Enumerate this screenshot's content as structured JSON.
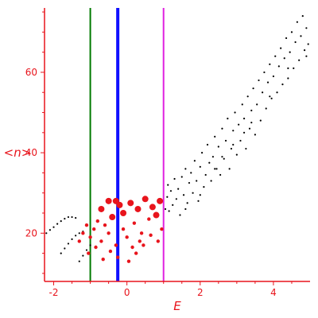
{
  "chart_data": {
    "type": "scatter",
    "title": "",
    "xlabel": "E",
    "ylabel": "<n>",
    "xlim": [
      -2.25,
      5.0
    ],
    "ylim": [
      8,
      76
    ],
    "grid": false,
    "legend": "none",
    "x_ticks": [
      -2,
      0,
      2,
      4
    ],
    "x_tick_labels": [
      "-2",
      "0",
      "2",
      "4"
    ],
    "y_ticks": [
      20,
      40,
      60
    ],
    "y_tick_labels": [
      "20",
      "40",
      "60"
    ],
    "colors": {
      "axis": "#e8141c",
      "red_points": "#e8141c",
      "black_points": "#000000",
      "line_green": "#007a00",
      "line_blue": "#1010ff",
      "line_magenta": "#e020e0"
    },
    "vertical_lines": [
      {
        "x": -1.0,
        "color": "#007a00"
      },
      {
        "x": -0.25,
        "color": "#1010ff"
      },
      {
        "x": 1.0,
        "color": "#e020e0"
      }
    ],
    "series": [
      {
        "color": "#000000",
        "points": [
          [
            -2.2,
            20.0
          ],
          [
            -2.1,
            20.8
          ],
          [
            -2.0,
            21.5
          ],
          [
            -1.9,
            22.3
          ],
          [
            -1.8,
            23.0
          ],
          [
            -1.7,
            23.6
          ],
          [
            -1.6,
            24.0
          ],
          [
            -1.5,
            24.0
          ],
          [
            -1.4,
            23.8
          ],
          [
            -1.8,
            15.0
          ],
          [
            -1.7,
            16.2
          ],
          [
            -1.6,
            17.4
          ],
          [
            -1.5,
            18.5
          ],
          [
            -1.4,
            19.4
          ],
          [
            -1.3,
            20.0
          ],
          [
            -1.2,
            20.4
          ],
          [
            -1.3,
            13.0
          ],
          [
            -1.2,
            14.4
          ],
          [
            -1.1,
            15.8
          ],
          [
            -1.0,
            17.0
          ],
          [
            1.05,
            26.0
          ],
          [
            1.1,
            29.0
          ],
          [
            1.12,
            32.0
          ],
          [
            1.15,
            25.5
          ],
          [
            1.2,
            30.5
          ],
          [
            1.25,
            27.0
          ],
          [
            1.3,
            33.5
          ],
          [
            1.35,
            28.5
          ],
          [
            1.4,
            31.0
          ],
          [
            1.45,
            24.5
          ],
          [
            1.5,
            34.0
          ],
          [
            1.55,
            29.5
          ],
          [
            1.6,
            36.0
          ],
          [
            1.65,
            27.5
          ],
          [
            1.7,
            32.5
          ],
          [
            1.75,
            35.0
          ],
          [
            1.8,
            30.0
          ],
          [
            1.85,
            38.0
          ],
          [
            1.9,
            33.0
          ],
          [
            1.95,
            28.0
          ],
          [
            2.0,
            36.5
          ],
          [
            2.05,
            40.0
          ],
          [
            2.1,
            31.5
          ],
          [
            2.15,
            34.5
          ],
          [
            2.2,
            42.0
          ],
          [
            2.25,
            37.5
          ],
          [
            2.3,
            33.0
          ],
          [
            2.35,
            39.0
          ],
          [
            2.4,
            44.0
          ],
          [
            2.45,
            36.0
          ],
          [
            2.5,
            41.5
          ],
          [
            2.55,
            34.5
          ],
          [
            2.6,
            46.0
          ],
          [
            2.65,
            38.5
          ],
          [
            2.7,
            43.0
          ],
          [
            2.75,
            48.5
          ],
          [
            2.8,
            36.0
          ],
          [
            2.85,
            41.0
          ],
          [
            2.9,
            45.5
          ],
          [
            2.95,
            50.0
          ],
          [
            3.0,
            39.5
          ],
          [
            3.05,
            47.0
          ],
          [
            3.1,
            43.0
          ],
          [
            3.15,
            52.0
          ],
          [
            3.2,
            48.5
          ],
          [
            3.25,
            41.0
          ],
          [
            3.3,
            54.0
          ],
          [
            3.35,
            46.0
          ],
          [
            3.4,
            50.5
          ],
          [
            3.45,
            56.0
          ],
          [
            3.5,
            44.5
          ],
          [
            3.55,
            52.0
          ],
          [
            3.6,
            58.0
          ],
          [
            3.65,
            48.0
          ],
          [
            3.7,
            55.0
          ],
          [
            3.75,
            60.0
          ],
          [
            3.8,
            51.0
          ],
          [
            3.85,
            57.5
          ],
          [
            3.9,
            62.0
          ],
          [
            3.95,
            53.5
          ],
          [
            4.0,
            59.0
          ],
          [
            4.05,
            64.0
          ],
          [
            4.1,
            55.0
          ],
          [
            4.15,
            61.5
          ],
          [
            4.2,
            66.0
          ],
          [
            4.25,
            57.0
          ],
          [
            4.3,
            63.5
          ],
          [
            4.35,
            68.5
          ],
          [
            4.4,
            58.5
          ],
          [
            4.45,
            65.0
          ],
          [
            4.5,
            70.0
          ],
          [
            4.55,
            61.0
          ],
          [
            4.6,
            67.5
          ],
          [
            4.65,
            72.5
          ],
          [
            4.7,
            63.0
          ],
          [
            4.75,
            69.0
          ],
          [
            4.8,
            74.0
          ],
          [
            4.85,
            65.5
          ],
          [
            4.9,
            71.0
          ],
          [
            4.95,
            67.0
          ],
          [
            2.4,
            36.0
          ],
          [
            2.9,
            42.0
          ],
          [
            3.4,
            47.5
          ],
          [
            3.9,
            54.0
          ],
          [
            4.4,
            61.0
          ],
          [
            4.9,
            64.0
          ],
          [
            1.6,
            26.0
          ],
          [
            2.0,
            29.5
          ],
          [
            2.6,
            39.0
          ],
          [
            3.2,
            45.0
          ]
        ]
      },
      {
        "color": "#e8141c",
        "points": [
          [
            -0.5,
            28.0
          ],
          [
            -0.3,
            28.0
          ],
          [
            -0.7,
            26.0
          ],
          [
            -0.4,
            24.0
          ],
          [
            -0.2,
            27.0
          ],
          [
            -0.6,
            22.0
          ],
          [
            -0.1,
            25.0
          ],
          [
            0.1,
            27.5
          ],
          [
            0.3,
            26.0
          ],
          [
            0.5,
            28.5
          ],
          [
            -0.9,
            21.0
          ],
          [
            -1.0,
            19.0
          ],
          [
            -0.8,
            23.0
          ],
          [
            -1.2,
            20.0
          ],
          [
            -1.1,
            22.0
          ],
          [
            -0.7,
            18.0
          ],
          [
            -0.5,
            20.0
          ],
          [
            -0.3,
            17.0
          ],
          [
            -0.1,
            21.0
          ],
          [
            0.0,
            19.0
          ],
          [
            0.2,
            22.5
          ],
          [
            0.4,
            20.0
          ],
          [
            0.6,
            23.5
          ],
          [
            0.7,
            26.5
          ],
          [
            0.8,
            24.5
          ],
          [
            0.9,
            28.0
          ],
          [
            0.95,
            21.0
          ],
          [
            0.35,
            18.0
          ],
          [
            0.15,
            16.5
          ],
          [
            -0.45,
            15.5
          ],
          [
            -0.85,
            16.5
          ],
          [
            -1.05,
            15.0
          ],
          [
            -0.65,
            13.5
          ],
          [
            -0.25,
            14.0
          ],
          [
            0.05,
            13.0
          ],
          [
            0.25,
            15.0
          ],
          [
            0.45,
            17.0
          ],
          [
            0.65,
            19.5
          ],
          [
            0.85,
            18.0
          ],
          [
            -1.3,
            18.0
          ]
        ]
      }
    ]
  }
}
